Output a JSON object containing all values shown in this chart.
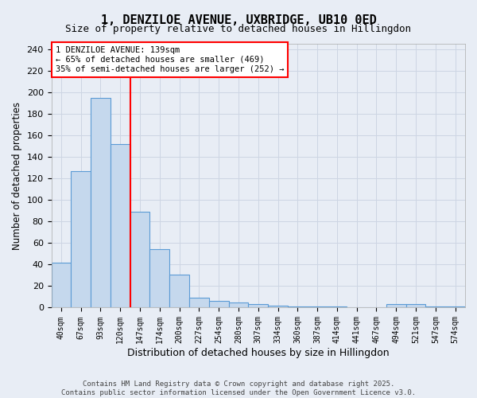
{
  "title": "1, DENZILOE AVENUE, UXBRIDGE, UB10 0ED",
  "subtitle": "Size of property relative to detached houses in Hillingdon",
  "xlabel": "Distribution of detached houses by size in Hillingdon",
  "ylabel": "Number of detached properties",
  "categories": [
    "40sqm",
    "67sqm",
    "93sqm",
    "120sqm",
    "147sqm",
    "174sqm",
    "200sqm",
    "227sqm",
    "254sqm",
    "280sqm",
    "307sqm",
    "334sqm",
    "360sqm",
    "387sqm",
    "414sqm",
    "441sqm",
    "467sqm",
    "494sqm",
    "521sqm",
    "547sqm",
    "574sqm"
  ],
  "values": [
    42,
    127,
    195,
    152,
    89,
    54,
    31,
    9,
    6,
    5,
    3,
    2,
    1,
    1,
    1,
    0,
    0,
    3,
    3,
    1,
    1
  ],
  "bar_color": "#c5d8ed",
  "bar_edge_color": "#5b9bd5",
  "bar_edge_width": 0.8,
  "red_line_x": 3.5,
  "annotation_text": "1 DENZILOE AVENUE: 139sqm\n← 65% of detached houses are smaller (469)\n35% of semi-detached houses are larger (252) →",
  "annotation_box_color": "white",
  "annotation_box_edge_color": "red",
  "ylim": [
    0,
    245
  ],
  "yticks": [
    0,
    20,
    40,
    60,
    80,
    100,
    120,
    140,
    160,
    180,
    200,
    220,
    240
  ],
  "grid_color": "#cdd5e3",
  "background_color": "#e8edf5",
  "footer1": "Contains HM Land Registry data © Crown copyright and database right 2025.",
  "footer2": "Contains public sector information licensed under the Open Government Licence v3.0."
}
